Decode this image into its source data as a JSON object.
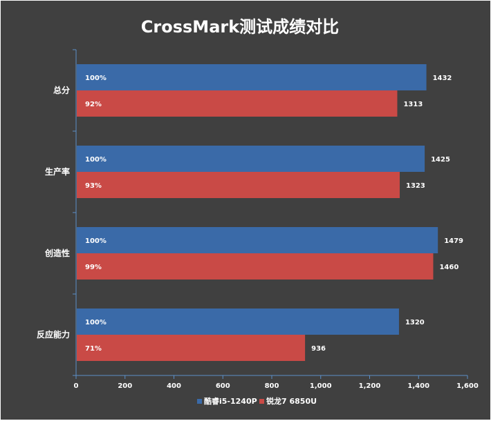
{
  "chart_data": {
    "type": "bar",
    "orientation": "horizontal",
    "title": "CrossMark测试成绩对比",
    "categories": [
      "总分",
      "生产率",
      "创造性",
      "反应能力"
    ],
    "series": [
      {
        "name": "酷睿i5-1240P",
        "color": "#3a6aa8",
        "values": [
          1432,
          1425,
          1479,
          1320
        ],
        "percent_labels": [
          "100%",
          "100%",
          "100%",
          "100%"
        ]
      },
      {
        "name": "锐龙7 6850U",
        "color": "#c94a46",
        "values": [
          1313,
          1323,
          1460,
          936
        ],
        "percent_labels": [
          "92%",
          "93%",
          "99%",
          "71%"
        ]
      }
    ],
    "xlim": [
      0,
      1600
    ],
    "xticks": [
      0,
      200,
      400,
      600,
      800,
      1000,
      1200,
      1400,
      1600
    ],
    "xtick_labels": [
      "0",
      "200",
      "400",
      "600",
      "800",
      "1,000",
      "1,200",
      "1,400",
      "1,600"
    ],
    "xlabel": "",
    "ylabel": "",
    "grid": false,
    "legend_position": "bottom",
    "background": "#404040",
    "axis_color": "#5b8fc9"
  }
}
